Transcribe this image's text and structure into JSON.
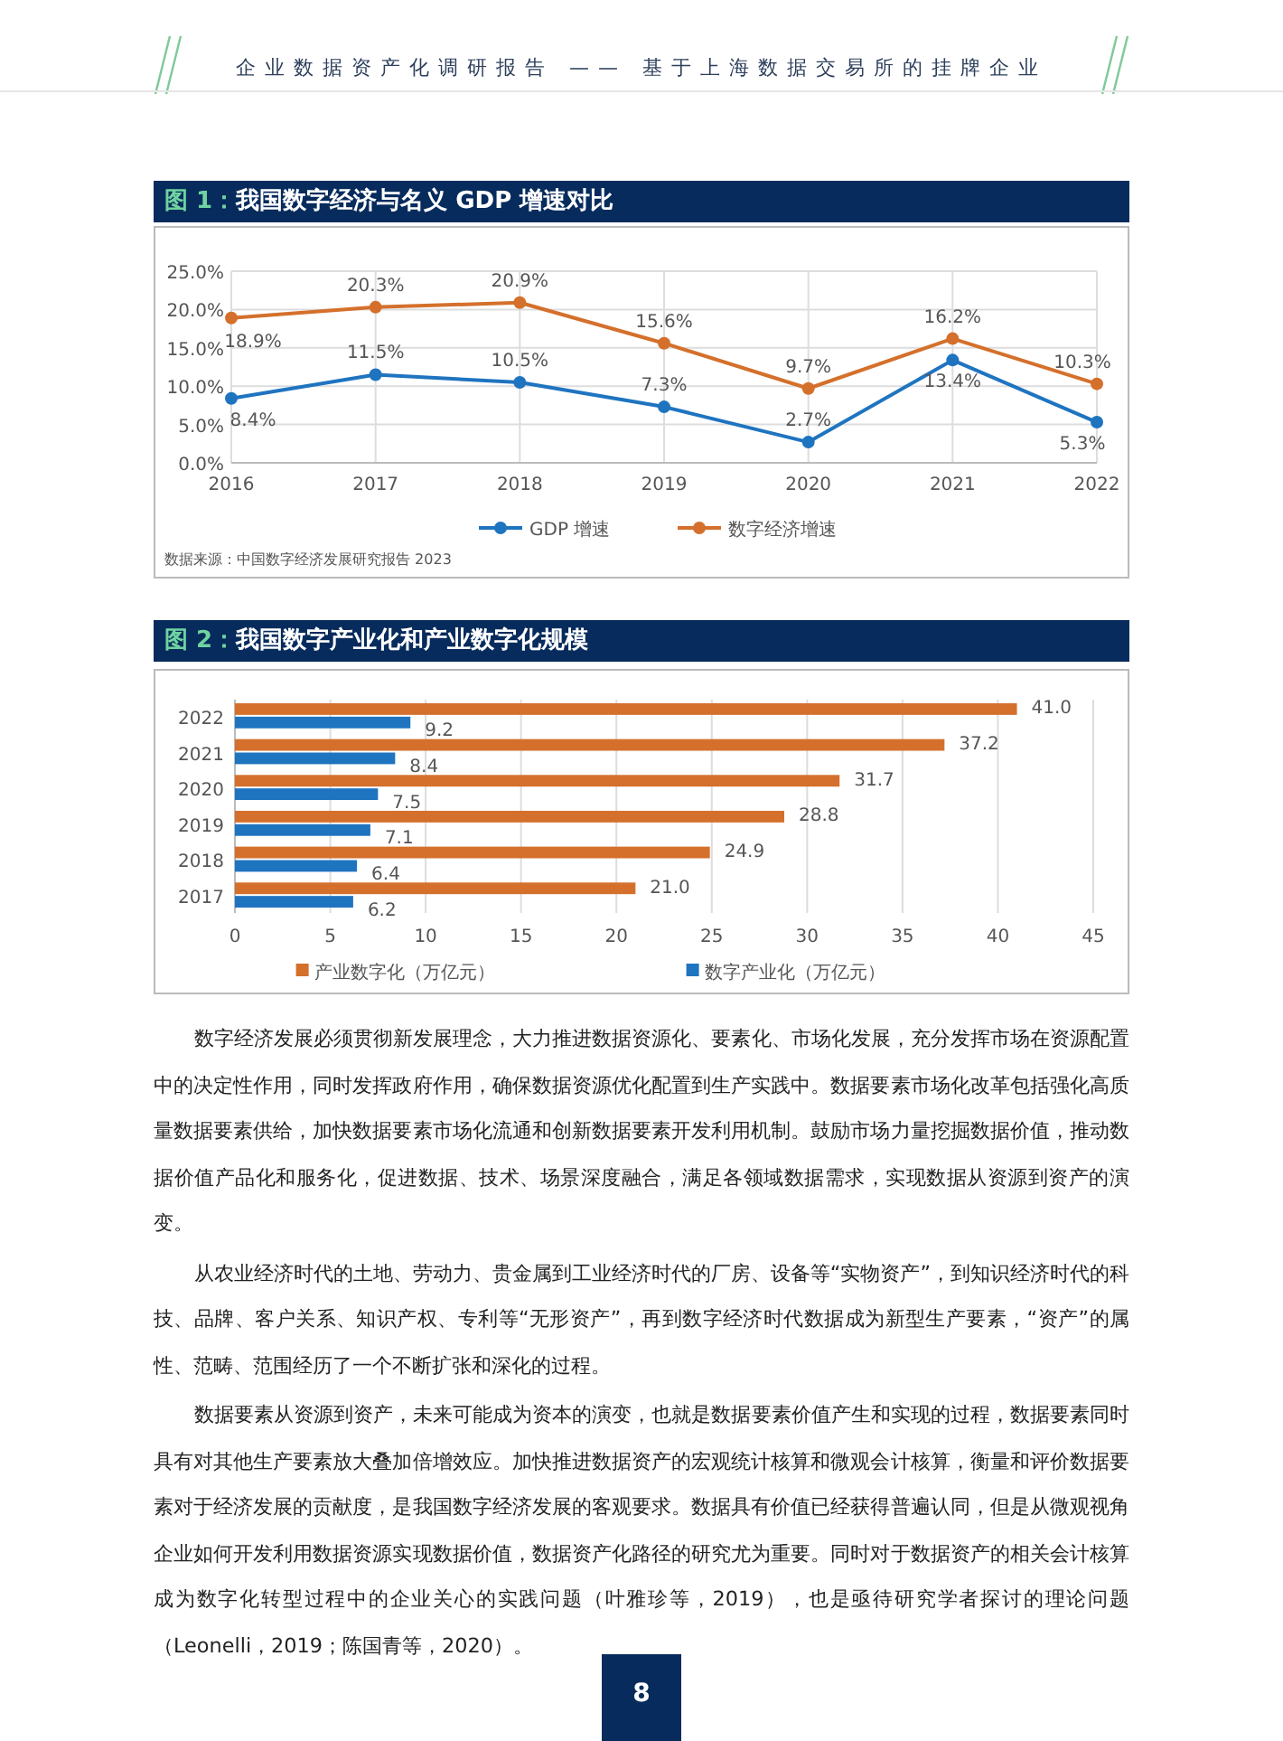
{
  "chart_data": [
    {
      "type": "line",
      "title": "图 1：我国数字经济与名义 GDP 增速对比",
      "categories": [
        "2016",
        "2017",
        "2018",
        "2019",
        "2020",
        "2021",
        "2022"
      ],
      "series": [
        {
          "name": "GDP 增速",
          "color": "#1f74c0",
          "values": [
            8.4,
            11.5,
            10.5,
            7.3,
            2.7,
            13.4,
            5.3
          ],
          "value_labels": [
            "8.4%",
            "11.5%",
            "10.5%",
            "7.3%",
            "2.7%",
            "13.4%",
            "5.3%"
          ]
        },
        {
          "name": "数字经济增速",
          "color": "#d4702c",
          "values": [
            18.9,
            20.3,
            20.9,
            15.6,
            9.7,
            16.2,
            10.3
          ],
          "value_labels": [
            "18.9%",
            "20.3%",
            "20.9%",
            "15.6%",
            "9.7%",
            "16.2%",
            "10.3%"
          ]
        }
      ],
      "ylim": [
        0,
        25
      ],
      "yticks": [
        {
          "value": 0,
          "label": "0.0%"
        },
        {
          "value": 5,
          "label": "5.0%"
        },
        {
          "value": 10,
          "label": "10.0%"
        },
        {
          "value": 15,
          "label": "15.0%"
        },
        {
          "value": 20,
          "label": "20.0%"
        },
        {
          "value": 25,
          "label": "25.0%"
        }
      ],
      "grid": true,
      "legend": "bottom",
      "marker": "circle",
      "line_style": "solid",
      "annotations": [
        "数据来源：中国数字经济发展研究报告 2023"
      ]
    },
    {
      "type": "bar",
      "orientation": "horizontal",
      "title": "图 2：我国数字产业化和产业数字化规模",
      "categories": [
        "2022",
        "2021",
        "2020",
        "2019",
        "2018",
        "2017"
      ],
      "series": [
        {
          "name": "产业数字化（万亿元）",
          "color": "#d4702c",
          "values": [
            41.0,
            37.2,
            31.7,
            28.8,
            24.9,
            21.0
          ],
          "value_labels": [
            "41.0",
            "37.2",
            "31.7",
            "28.8",
            "24.9",
            "21.0"
          ]
        },
        {
          "name": "数字产业化（万亿元）",
          "color": "#1f74c0",
          "values": [
            9.2,
            8.4,
            7.5,
            7.1,
            6.4,
            6.2
          ],
          "value_labels": [
            "9.2",
            "8.4",
            "7.5",
            "7.1",
            "6.4",
            "6.2"
          ]
        }
      ],
      "xlim": [
        0,
        45
      ],
      "xticks": [
        0,
        5,
        10,
        15,
        20,
        25,
        30,
        35,
        40,
        45
      ],
      "grid": "x",
      "legend": "bottom"
    },
    {
      "type": "other",
      "title": "企业数据资产化调研报告 —— 基于上海数据交易所的挂牌企业",
      "annotations": [
        "数字经济发展必须贯彻新发展理念，大力推进数据资源化、要素化、市场化发展，充分发挥市场在资源配置中的决定性作用，同时发挥政府作用，确保数据资源优化配置到生产实践中。数据要素市场化改革包括强化高质量数据要素供给，加快数据要素市场化流通和创新数据要素开发利用机制。鼓励市场力量挖掘数据价值，推动数据价值产品化和服务化，促进数据、技术、场景深度融合，满足各领域数据需求，实现数据从资源到资产的演变。",
        "从农业经济时代的土地、劳动力、贵金属到工业经济时代的厂房、设备等“实物资产”，到知识经济时代的科技、品牌、客户关系、知识产权、专利等“无形资产”，再到数字经济时代数据成为新型生产要素，“资产”的属性、范畴、范围经历了一个不断扩张和深化的过程。",
        "数据要素从资源到资产，未来可能成为资本的演变，也就是数据要素价值产生和实现的过程，数据要素同时具有对其他生产要素放大叠加倍增效应。加快推进数据资产的宏观统计核算和微观会计核算，衡量和评价数据要素对于经济发展的贡献度，是我国数字经济发展的客观要求。数据具有价值已经获得普遍认同，但是从微观视角企业如何开发利用数据资源实现数据价值，数据资产化路径的研究尤为重要。同时对于数据资产的相关会计核算成为数字化转型过程中的企业关心的实践问题（叶雅珍等，2019），也是亟待研究学者探讨的理论问题（Leonelli，2019；陈国青等，2020）。",
        "8"
      ]
    }
  ]
}
